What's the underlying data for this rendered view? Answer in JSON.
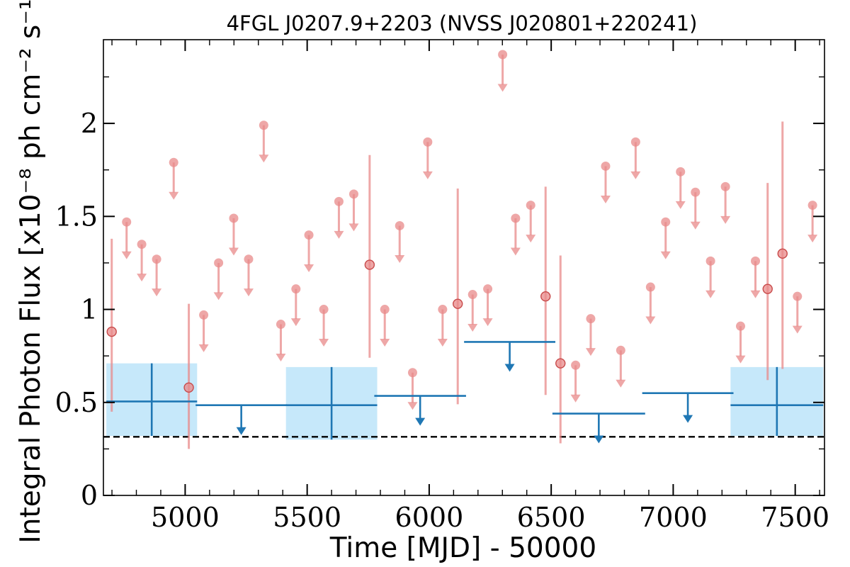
{
  "chart_data": {
    "type": "scatter",
    "title": "4FGL J0207.9+2203 (NVSS J020801+220241)",
    "xlabel": "Time [MJD] - 50000",
    "ylabel": "Integral Photon Flux [x10⁻⁸ ph cm⁻² s⁻¹]",
    "xlim": [
      4665,
      7620
    ],
    "ylim": [
      0,
      2.45
    ],
    "x_ticks": [
      5000,
      5500,
      6000,
      6500,
      7000,
      7500
    ],
    "x_tick_labels": [
      "5000",
      "5500",
      "6000",
      "6500",
      "7000",
      "7500"
    ],
    "y_ticks": [
      0,
      0.5,
      1,
      1.5,
      2
    ],
    "y_tick_labels": [
      "0",
      "0.5",
      "1",
      "1.5",
      "2"
    ],
    "reference_line": {
      "y": 0.315,
      "style": "dashed",
      "color": "#000000"
    },
    "colors": {
      "short_bins": "#e88a8a",
      "long_bins": "#1f77b4",
      "long_bin_box": "#c6e8fa"
    },
    "series": [
      {
        "bin": "short",
        "detections": [
          {
            "x": 4699,
            "y": 0.88,
            "yerr_low": 0.45,
            "yerr_high": 1.38
          },
          {
            "x": 5015,
            "y": 0.58,
            "yerr_low": 0.25,
            "yerr_high": 1.03
          },
          {
            "x": 5756,
            "y": 1.24,
            "yerr_low": 0.74,
            "yerr_high": 1.83
          },
          {
            "x": 6117,
            "y": 1.03,
            "yerr_low": 0.49,
            "yerr_high": 1.65
          },
          {
            "x": 6477,
            "y": 1.07,
            "yerr_low": 0.54,
            "yerr_high": 1.66
          },
          {
            "x": 6538,
            "y": 0.71,
            "yerr_low": 0.28,
            "yerr_high": 1.29
          },
          {
            "x": 7387,
            "y": 1.11,
            "yerr_low": 0.62,
            "yerr_high": 1.68
          },
          {
            "x": 7448,
            "y": 1.3,
            "yerr_low": 0.68,
            "yerr_high": 2.01
          }
        ],
        "upper_limits": [
          {
            "x": 4760,
            "y": 1.47
          },
          {
            "x": 4822,
            "y": 1.35
          },
          {
            "x": 4883,
            "y": 1.27
          },
          {
            "x": 4953,
            "y": 1.79
          },
          {
            "x": 5076,
            "y": 0.97
          },
          {
            "x": 5137,
            "y": 1.25
          },
          {
            "x": 5199,
            "y": 1.49
          },
          {
            "x": 5260,
            "y": 1.27
          },
          {
            "x": 5322,
            "y": 1.99
          },
          {
            "x": 5392,
            "y": 0.92
          },
          {
            "x": 5454,
            "y": 1.11
          },
          {
            "x": 5507,
            "y": 1.4
          },
          {
            "x": 5568,
            "y": 1.0
          },
          {
            "x": 5630,
            "y": 1.58
          },
          {
            "x": 5691,
            "y": 1.62
          },
          {
            "x": 5818,
            "y": 1.0
          },
          {
            "x": 5879,
            "y": 1.45
          },
          {
            "x": 5932,
            "y": 0.66
          },
          {
            "x": 5994,
            "y": 1.9
          },
          {
            "x": 6055,
            "y": 1.0
          },
          {
            "x": 6178,
            "y": 1.08
          },
          {
            "x": 6240,
            "y": 1.11
          },
          {
            "x": 6301,
            "y": 2.37
          },
          {
            "x": 6354,
            "y": 1.49
          },
          {
            "x": 6416,
            "y": 1.56
          },
          {
            "x": 6600,
            "y": 0.7
          },
          {
            "x": 6662,
            "y": 0.95
          },
          {
            "x": 6723,
            "y": 1.77
          },
          {
            "x": 6785,
            "y": 0.78
          },
          {
            "x": 6846,
            "y": 1.9
          },
          {
            "x": 6907,
            "y": 1.12
          },
          {
            "x": 6969,
            "y": 1.47
          },
          {
            "x": 7030,
            "y": 1.74
          },
          {
            "x": 7091,
            "y": 1.63
          },
          {
            "x": 7153,
            "y": 1.26
          },
          {
            "x": 7214,
            "y": 1.66
          },
          {
            "x": 7276,
            "y": 0.91
          },
          {
            "x": 7337,
            "y": 1.26
          },
          {
            "x": 7509,
            "y": 1.07
          },
          {
            "x": 7571,
            "y": 1.56
          }
        ]
      },
      {
        "bin": "long",
        "detections": [
          {
            "x": 4863,
            "y": 0.505,
            "xerr": 186,
            "y_low": 0.32,
            "y_high": 0.71
          },
          {
            "x": 5600,
            "y": 0.485,
            "xerr": 187,
            "y_low": 0.3,
            "y_high": 0.69
          },
          {
            "x": 7425,
            "y": 0.485,
            "xerr": 190,
            "y_low": 0.32,
            "y_high": 0.69
          }
        ],
        "upper_limits": [
          {
            "x": 5230,
            "y": 0.485,
            "xerr": 187
          },
          {
            "x": 5963,
            "y": 0.535,
            "xerr": 188
          },
          {
            "x": 6330,
            "y": 0.825,
            "xerr": 187
          },
          {
            "x": 6695,
            "y": 0.44,
            "xerr": 190
          },
          {
            "x": 7060,
            "y": 0.55,
            "xerr": 187
          }
        ]
      }
    ]
  }
}
